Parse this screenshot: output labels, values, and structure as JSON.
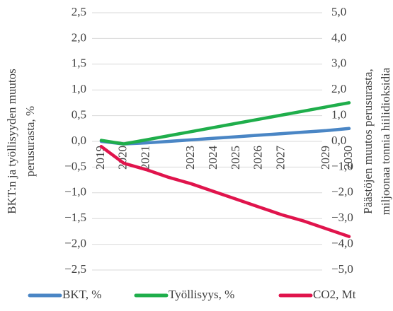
{
  "chart_data": {
    "type": "line",
    "categories": [
      "2019",
      "2020",
      "2021",
      null,
      "2023",
      "2024",
      "2025",
      "2026",
      "2027",
      null,
      "2029",
      "2030"
    ],
    "y_label": [
      "BKT:n ja työllisyyden muutos",
      "perusurasta, %"
    ],
    "y2_label": [
      "Päästöjen muutos perusurasta,",
      "miljoonaa tonnia hiilidioksidia"
    ],
    "ylim": [
      -2.5,
      2.5
    ],
    "yticks": [
      {
        "value": -2.5,
        "label": "−2,5"
      },
      {
        "value": -2.0,
        "label": "−2,0"
      },
      {
        "value": -1.5,
        "label": "−1,5"
      },
      {
        "value": -1.0,
        "label": "−1,0"
      },
      {
        "value": -0.5,
        "label": "−0,5"
      },
      {
        "value": 0.0,
        "label": "0,0"
      },
      {
        "value": 0.5,
        "label": "0,5"
      },
      {
        "value": 1.0,
        "label": "1,0"
      },
      {
        "value": 1.5,
        "label": "1,5"
      },
      {
        "value": 2.0,
        "label": "2,0"
      },
      {
        "value": 2.5,
        "label": "2,5"
      }
    ],
    "y2lim": [
      -5.0,
      5.0
    ],
    "y2ticks": [
      {
        "value": -5.0,
        "label": "−5,0"
      },
      {
        "value": -4.0,
        "label": "−4,0"
      },
      {
        "value": -3.0,
        "label": "−3,0"
      },
      {
        "value": -2.0,
        "label": "−2,0"
      },
      {
        "value": -1.0,
        "label": "−1,0"
      },
      {
        "value": 0.0,
        "label": "0,0"
      },
      {
        "value": 1.0,
        "label": "1,0"
      },
      {
        "value": 2.0,
        "label": "2,0"
      },
      {
        "value": 3.0,
        "label": "3,0"
      },
      {
        "value": 4.0,
        "label": "4,0"
      },
      {
        "value": 5.0,
        "label": "5,0"
      }
    ],
    "grid": true,
    "legend": "bottom",
    "series": [
      {
        "name": "BKT, %",
        "color": "#4a86c5",
        "values": [
          0.0,
          -0.05,
          -0.03,
          0.0,
          0.03,
          0.06,
          0.09,
          0.12,
          0.15,
          0.18,
          0.21,
          0.25
        ]
      },
      {
        "name": "Työllisyys, %",
        "color": "#1fae4b",
        "values": [
          0.02,
          -0.05,
          0.03,
          0.11,
          0.19,
          0.27,
          0.35,
          0.43,
          0.51,
          0.59,
          0.67,
          0.75
        ]
      },
      {
        "name": "CO2, Mt",
        "color": "#e0144c",
        "axis": "y2",
        "values": [
          -0.2,
          -0.85,
          -1.1,
          -1.4,
          -1.65,
          -1.95,
          -2.25,
          -2.55,
          -2.85,
          -3.1,
          -3.4,
          -3.7
        ]
      }
    ]
  }
}
